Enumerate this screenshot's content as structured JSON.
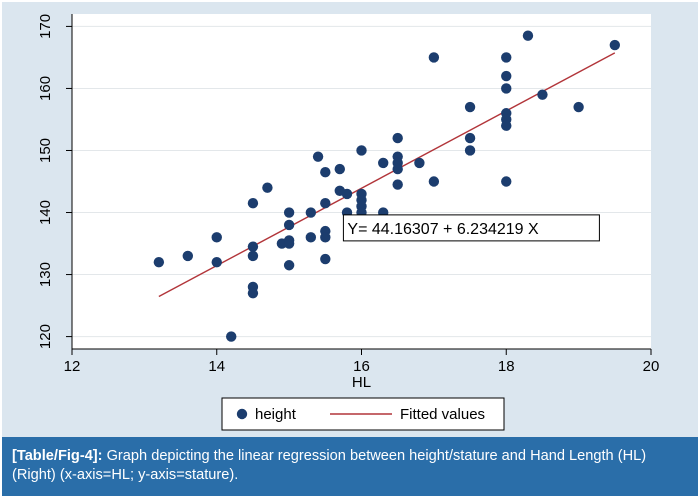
{
  "chart_data": {
    "type": "scatter",
    "title": "",
    "xlabel": "HL",
    "ylabel": "",
    "xlim": [
      12,
      20
    ],
    "ylim": [
      118,
      172
    ],
    "xticks": [
      12,
      14,
      16,
      18,
      20
    ],
    "yticks": [
      120,
      130,
      140,
      150,
      160,
      170
    ],
    "grid": true,
    "legend_position": "bottom",
    "series": [
      {
        "name": "height",
        "type": "scatter",
        "color": "#1c3d6e",
        "points": [
          [
            13.2,
            132
          ],
          [
            13.6,
            133
          ],
          [
            14.0,
            136
          ],
          [
            14.0,
            132
          ],
          [
            14.2,
            120
          ],
          [
            14.5,
            141.5
          ],
          [
            14.5,
            134.5
          ],
          [
            14.5,
            133
          ],
          [
            14.5,
            128
          ],
          [
            14.5,
            127
          ],
          [
            14.7,
            144
          ],
          [
            14.9,
            135
          ],
          [
            15.0,
            140
          ],
          [
            15.0,
            138
          ],
          [
            15.0,
            135.5
          ],
          [
            15.0,
            135
          ],
          [
            15.0,
            131.5
          ],
          [
            15.3,
            140
          ],
          [
            15.3,
            136
          ],
          [
            15.4,
            149
          ],
          [
            15.5,
            146.5
          ],
          [
            15.5,
            141.5
          ],
          [
            15.5,
            137
          ],
          [
            15.5,
            136
          ],
          [
            15.5,
            132.5
          ],
          [
            15.7,
            147
          ],
          [
            15.7,
            143.5
          ],
          [
            15.8,
            143
          ],
          [
            15.8,
            140
          ],
          [
            16.0,
            150
          ],
          [
            16.0,
            143
          ],
          [
            16.0,
            142
          ],
          [
            16.0,
            141
          ],
          [
            16.0,
            140
          ],
          [
            16.0,
            138.5
          ],
          [
            16.3,
            148
          ],
          [
            16.3,
            140
          ],
          [
            16.5,
            152
          ],
          [
            16.5,
            149
          ],
          [
            16.5,
            148
          ],
          [
            16.5,
            147
          ],
          [
            16.5,
            144.5
          ],
          [
            16.8,
            148
          ],
          [
            17.0,
            165
          ],
          [
            17.0,
            145
          ],
          [
            17.5,
            157
          ],
          [
            17.5,
            152
          ],
          [
            17.5,
            150
          ],
          [
            18.0,
            165
          ],
          [
            18.0,
            162
          ],
          [
            18.0,
            160
          ],
          [
            18.0,
            156
          ],
          [
            18.0,
            155
          ],
          [
            18.0,
            154
          ],
          [
            18.0,
            145
          ],
          [
            18.3,
            168.5
          ],
          [
            18.5,
            159
          ],
          [
            19.0,
            157
          ],
          [
            19.5,
            167
          ]
        ]
      },
      {
        "name": "Fitted values",
        "type": "line",
        "color": "#b2353a",
        "intercept": 44.16307,
        "slope": 6.234219,
        "x_range": [
          13.2,
          19.5
        ]
      }
    ],
    "annotations": [
      "Y= 44.16307 +  6.234219 X"
    ]
  },
  "caption": {
    "label": "[Table/Fig-4]:",
    "text": " Graph depicting the linear regression between height/stature and Hand Length (HL) (Right) (x-axis=HL; y-axis=stature)."
  }
}
